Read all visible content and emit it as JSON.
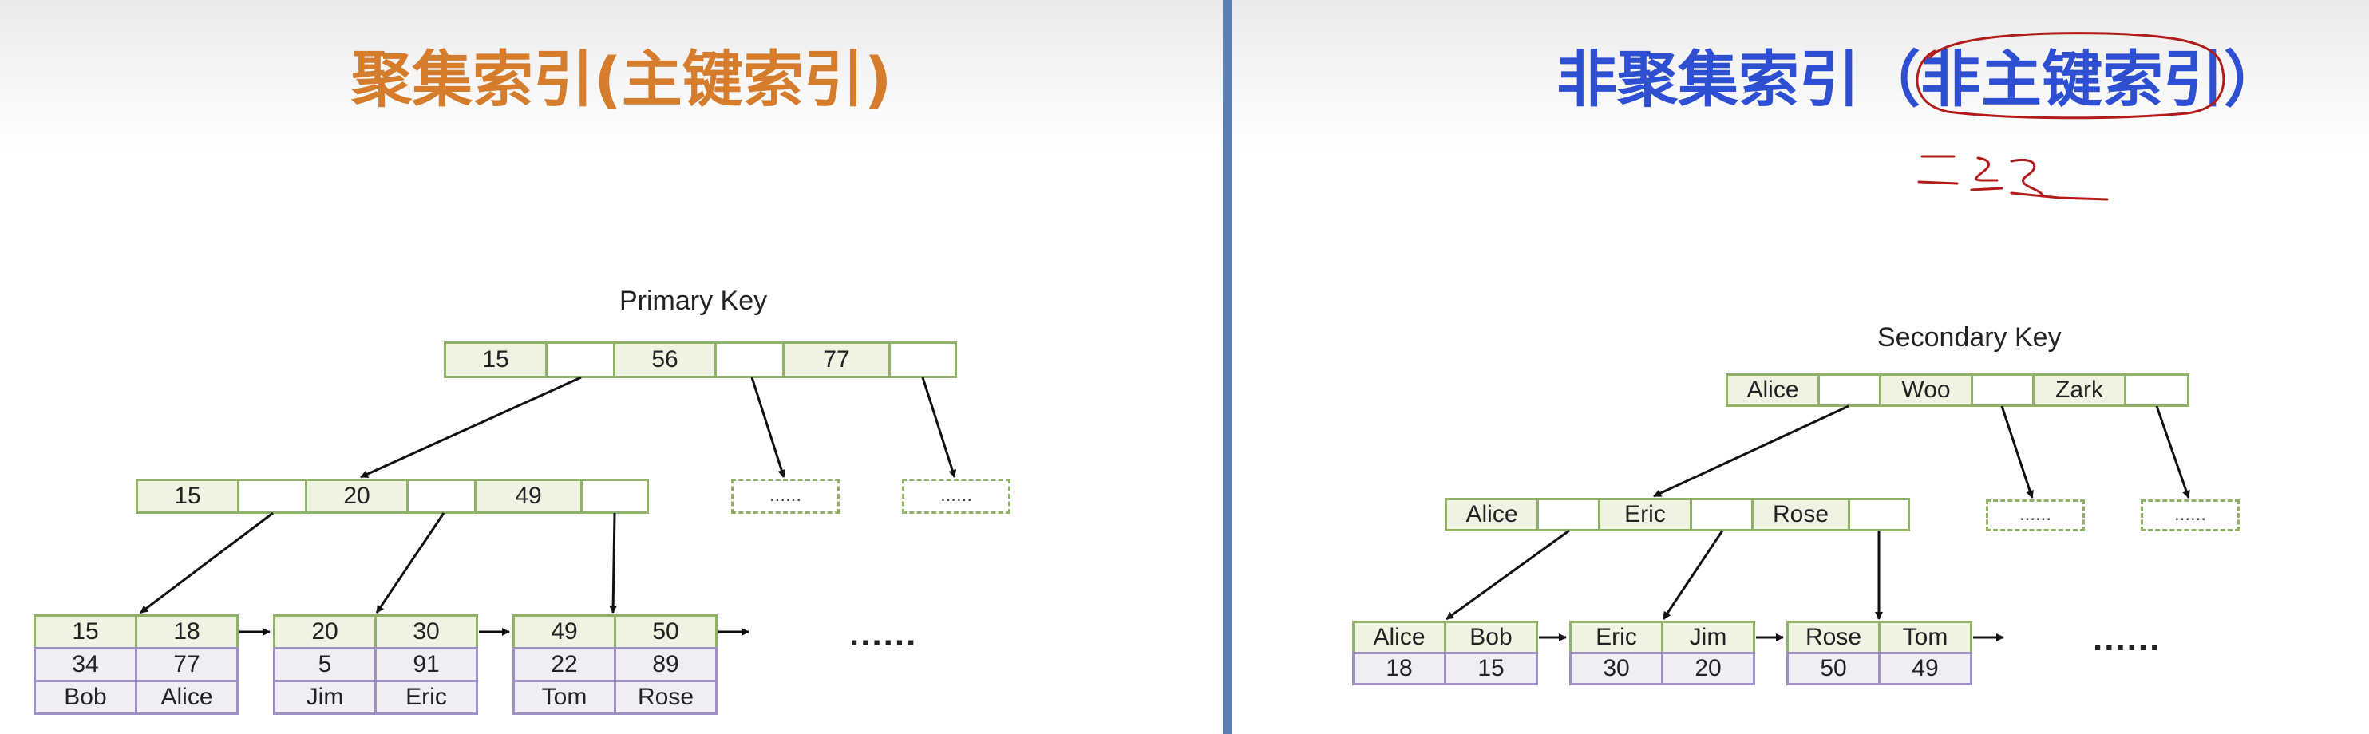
{
  "colors": {
    "left_title": "#d57d2d",
    "right_title": "#2e4fd1",
    "divider": "#5b7fb0",
    "key_cell_fill": "#eef3e2",
    "key_cell_border": "#8fb267",
    "data_cell_fill": "#f0edf5",
    "data_cell_border": "#9e8fc4",
    "annotation_ink": "#b31b1b"
  },
  "left": {
    "title_prefix": "聚集索引(",
    "title_highlight": "主键索引",
    "title_suffix": ")",
    "tree_label": "Primary Key",
    "root": [
      "15",
      "56",
      "77"
    ],
    "level2": [
      "15",
      "20",
      "49"
    ],
    "placeholders": [
      "......",
      "......"
    ],
    "leaves": [
      {
        "keys": [
          "15",
          "18"
        ],
        "row2": [
          "34",
          "77"
        ],
        "row3": [
          "Bob",
          "Alice"
        ]
      },
      {
        "keys": [
          "20",
          "30"
        ],
        "row2": [
          "5",
          "91"
        ],
        "row3": [
          "Jim",
          "Eric"
        ]
      },
      {
        "keys": [
          "49",
          "50"
        ],
        "row2": [
          "22",
          "89"
        ],
        "row3": [
          "Tom",
          "Rose"
        ]
      }
    ],
    "ellipsis": "......"
  },
  "right": {
    "title_prefix": "非聚集索引（",
    "title_highlight": "非主键索引",
    "title_suffix": "）",
    "annotation": "二级",
    "tree_label": "Secondary Key",
    "root": [
      "Alice",
      "Woo",
      "Zark"
    ],
    "level2": [
      "Alice",
      "Eric",
      "Rose"
    ],
    "placeholders": [
      "......",
      "......"
    ],
    "leaves": [
      {
        "keys": [
          "Alice",
          "Bob"
        ],
        "row2": [
          "18",
          "15"
        ]
      },
      {
        "keys": [
          "Eric",
          "Jim"
        ],
        "row2": [
          "30",
          "20"
        ]
      },
      {
        "keys": [
          "Rose",
          "Tom"
        ],
        "row2": [
          "50",
          "49"
        ]
      }
    ],
    "ellipsis": "......"
  }
}
